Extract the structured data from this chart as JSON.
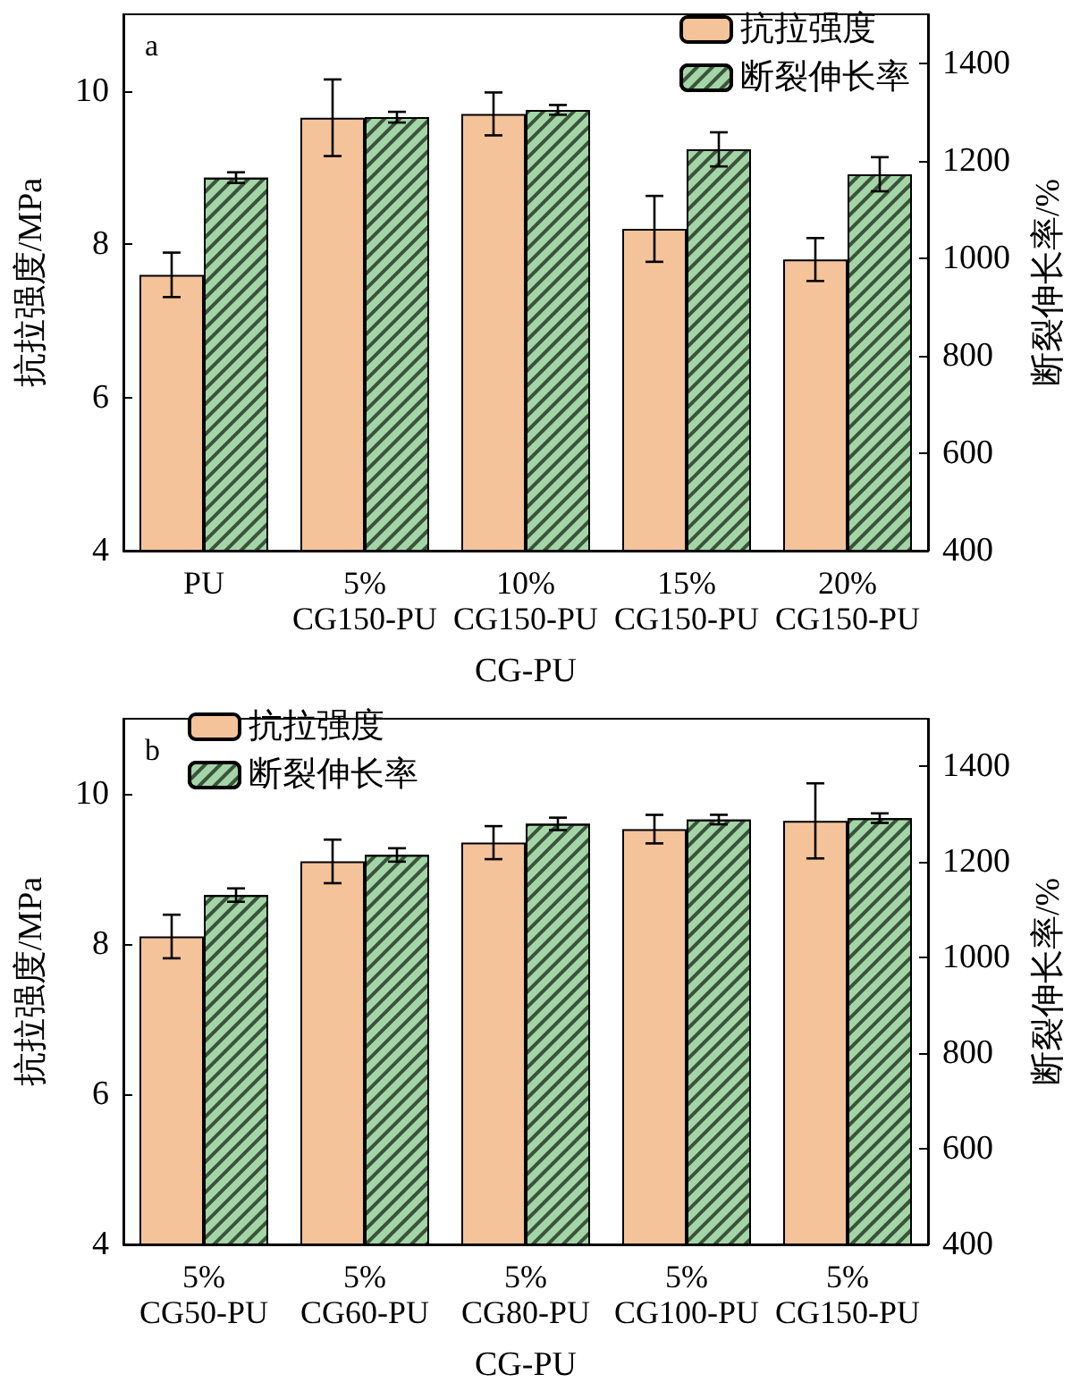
{
  "chart_data": [
    {
      "type": "bar",
      "title": "a",
      "xlabel": "CG-PU",
      "ylabel": "抗拉强度/MPa",
      "y2label": "断裂伸长率/%",
      "categories": [
        "PU",
        "5%\nCG150-PU",
        "10%\nCG150-PU",
        "15%\nCG150-PU",
        "20%\nCG150-PU"
      ],
      "series": [
        {
          "name": "抗拉强度",
          "color": "#f5c39a",
          "values": [
            7.6,
            9.65,
            9.7,
            8.2,
            7.8
          ],
          "errors": [
            0.29,
            0.5,
            0.28,
            0.43,
            0.28
          ]
        },
        {
          "name": "断裂伸长率",
          "color": "#a3d5a6",
          "axis": "y2",
          "values": [
            1165,
            1289,
            1304,
            1223,
            1172
          ],
          "errors": [
            11,
            11,
            10,
            35,
            35
          ]
        }
      ],
      "ylim": [
        4,
        11
      ],
      "yticks": [
        4,
        6,
        8,
        10
      ],
      "y2lim": [
        400,
        1500
      ],
      "y2ticks": [
        400,
        600,
        800,
        1000,
        1200,
        1400
      ],
      "legend": "top right",
      "grid": false
    },
    {
      "type": "bar",
      "title": "b",
      "xlabel": "CG-PU",
      "ylabel": "抗拉强度/MPa",
      "y2label": "断裂伸长率/%",
      "categories": [
        "5%\nCG50-PU",
        "5%\nCG60-PU",
        "5%\nCG80-PU",
        "5%\nCG100-PU",
        "5%\nCG150-PU"
      ],
      "series": [
        {
          "name": "抗拉强度",
          "color": "#f5c39a",
          "values": [
            8.1,
            9.1,
            9.35,
            9.53,
            9.64
          ],
          "errors": [
            0.29,
            0.29,
            0.22,
            0.19,
            0.5
          ]
        },
        {
          "name": "断裂伸长率",
          "color": "#a3d5a6",
          "axis": "y2",
          "values": [
            1131,
            1215,
            1280,
            1289,
            1292
          ],
          "errors": [
            14,
            14,
            13,
            10,
            10
          ]
        }
      ],
      "ylim": [
        4,
        11
      ],
      "yticks": [
        4,
        6,
        8,
        10
      ],
      "y2lim": [
        400,
        1500
      ],
      "y2ticks": [
        400,
        600,
        800,
        1000,
        1200,
        1400
      ],
      "legend": "top left",
      "grid": false
    }
  ]
}
